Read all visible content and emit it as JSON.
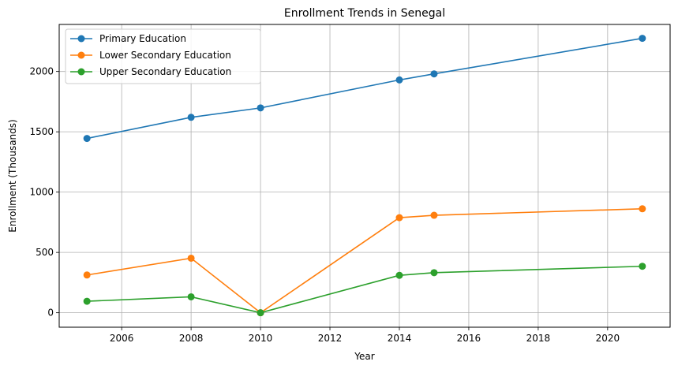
{
  "chart_data": {
    "type": "line",
    "title": "Enrollment Trends in Senegal",
    "xlabel": "Year",
    "ylabel": "Enrollment (Thousands)",
    "xlim": [
      2004.2,
      2021.8
    ],
    "ylim": [
      -120,
      2390
    ],
    "xticks": [
      2006,
      2008,
      2010,
      2012,
      2014,
      2016,
      2018,
      2020
    ],
    "yticks": [
      0,
      500,
      1000,
      1500,
      2000
    ],
    "grid": true,
    "legend_position": "top-left",
    "x": [
      2005,
      2008,
      2010,
      2014,
      2015,
      2021
    ],
    "series": [
      {
        "name": "Primary Education",
        "color": "#1f77b4",
        "values": [
          1445,
          1620,
          1698,
          1930,
          1980,
          2275
        ]
      },
      {
        "name": "Lower Secondary Education",
        "color": "#ff7f0e",
        "values": [
          313,
          452,
          0,
          788,
          808,
          862
        ]
      },
      {
        "name": "Upper Secondary Education",
        "color": "#2ca02c",
        "values": [
          95,
          132,
          0,
          310,
          332,
          385
        ]
      }
    ]
  }
}
